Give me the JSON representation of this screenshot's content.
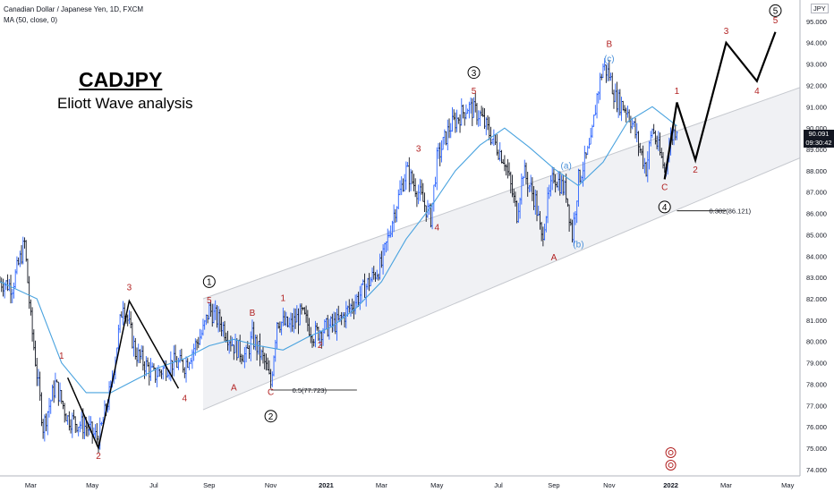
{
  "header": {
    "symbol_line": "Canadian Dollar / Japanese Yen, 1D, FXCM",
    "indicator_line": "MA (50, close, 0)",
    "currency": "JPY"
  },
  "chart_title": "CADJPY",
  "chart_subtitle": "Eliott Wave analysis",
  "price_badge": {
    "price": "90.091",
    "countdown": "09:30:42"
  },
  "colors": {
    "up_bar": "#2962ff",
    "bar": "#131722",
    "ma": "#4aa3df",
    "wave_red": "#b22222",
    "wave_blue": "#4a90d9",
    "channel_fill": "#f0f1f4",
    "channel_line": "#c5c8ce",
    "projection": "#000000"
  },
  "chart_data": {
    "type": "ohlc",
    "x_labels": [
      "Mar",
      "May",
      "Jul",
      "Sep",
      "Nov",
      "2021",
      "Mar",
      "May",
      "Jul",
      "Sep",
      "Nov",
      "2022",
      "Mar",
      "May"
    ],
    "y_ticks": [
      "95.000",
      "94.000",
      "93.000",
      "92.000",
      "91.000",
      "90.000",
      "89.000",
      "88.000",
      "87.000",
      "86.000",
      "85.000",
      "84.000",
      "83.000",
      "82.000",
      "81.000",
      "80.000",
      "79.000",
      "78.000",
      "77.000",
      "76.000",
      "75.000",
      "74.000"
    ],
    "ylim": [
      73.7,
      96.0
    ],
    "xlim": [
      0,
      130
    ],
    "x_tick_positions": [
      5,
      15,
      25,
      34,
      44,
      53,
      62,
      71,
      81,
      90,
      99,
      109,
      118,
      128
    ],
    "price_path": [
      [
        0,
        82.8
      ],
      [
        2,
        82.6
      ],
      [
        4,
        84.6
      ],
      [
        5,
        81.0
      ],
      [
        7,
        76.0
      ],
      [
        9,
        78.0
      ],
      [
        11,
        76.4
      ],
      [
        14,
        76.0
      ],
      [
        16,
        75.4
      ],
      [
        18,
        77.8
      ],
      [
        20,
        81.9
      ],
      [
        22,
        79.5
      ],
      [
        25,
        78.4
      ],
      [
        28,
        79.0
      ],
      [
        30,
        78.9
      ],
      [
        33,
        80.5
      ],
      [
        34,
        81.5
      ],
      [
        36,
        80.8
      ],
      [
        38,
        79.8
      ],
      [
        40,
        79.3
      ],
      [
        41,
        80.2
      ],
      [
        43,
        79.0
      ],
      [
        44,
        78.0
      ],
      [
        45,
        81.0
      ],
      [
        47,
        80.7
      ],
      [
        49,
        81.3
      ],
      [
        51,
        80.3
      ],
      [
        52,
        80.5
      ],
      [
        55,
        80.9
      ],
      [
        58,
        82.0
      ],
      [
        62,
        83.6
      ],
      [
        64,
        86.0
      ],
      [
        66,
        88.0
      ],
      [
        68,
        87.0
      ],
      [
        70,
        85.8
      ],
      [
        71,
        88.5
      ],
      [
        73,
        90.0
      ],
      [
        76,
        91.0
      ],
      [
        78,
        90.6
      ],
      [
        80,
        89.5
      ],
      [
        82,
        88.5
      ],
      [
        84,
        86.0
      ],
      [
        85,
        88.0
      ],
      [
        87,
        86.6
      ],
      [
        88,
        84.8
      ],
      [
        89,
        86.5
      ],
      [
        90,
        87.8
      ],
      [
        92,
        87.0
      ],
      [
        93,
        85.0
      ],
      [
        94,
        87.6
      ],
      [
        96,
        89.2
      ],
      [
        97,
        91.5
      ],
      [
        98,
        92.9
      ],
      [
        99,
        92.5
      ],
      [
        100,
        91.4
      ],
      [
        102,
        90.8
      ],
      [
        103,
        90.0
      ],
      [
        104,
        89.0
      ],
      [
        105,
        88.1
      ],
      [
        106,
        90.0
      ],
      [
        107,
        89.0
      ],
      [
        108,
        88.1
      ],
      [
        109,
        89.5
      ],
      [
        110,
        90.1
      ]
    ],
    "ma_path": [
      [
        0,
        82.8
      ],
      [
        6,
        82.0
      ],
      [
        10,
        79.0
      ],
      [
        14,
        77.6
      ],
      [
        18,
        77.6
      ],
      [
        22,
        78.2
      ],
      [
        26,
        78.8
      ],
      [
        30,
        79.2
      ],
      [
        34,
        79.8
      ],
      [
        38,
        80.1
      ],
      [
        42,
        79.8
      ],
      [
        46,
        79.6
      ],
      [
        50,
        80.2
      ],
      [
        54,
        80.7
      ],
      [
        58,
        81.6
      ],
      [
        62,
        82.8
      ],
      [
        66,
        84.8
      ],
      [
        70,
        86.3
      ],
      [
        74,
        88.0
      ],
      [
        78,
        89.2
      ],
      [
        82,
        90.0
      ],
      [
        86,
        89.1
      ],
      [
        90,
        88.1
      ],
      [
        94,
        87.3
      ],
      [
        98,
        88.4
      ],
      [
        102,
        90.3
      ],
      [
        106,
        91.0
      ],
      [
        110,
        90.1
      ]
    ],
    "channel": {
      "upper": [
        [
          33,
          82.0
        ],
        [
          130,
          91.9
        ]
      ],
      "lower": [
        [
          33,
          76.8
        ],
        [
          130,
          88.6
        ]
      ]
    },
    "wave_lines": [
      [
        [
          11,
          78.3
        ],
        [
          16,
          75.0
        ],
        [
          21,
          81.9
        ],
        [
          29,
          77.8
        ]
      ]
    ],
    "projection": [
      [
        108,
        87.6
      ],
      [
        110,
        91.2
      ],
      [
        113,
        88.5
      ],
      [
        118,
        94.0
      ],
      [
        123,
        92.2
      ],
      [
        126,
        94.5
      ]
    ],
    "fib_levels": [
      {
        "label": "0.5(77.723)",
        "x0": 44,
        "x1": 58,
        "y": 77.723
      },
      {
        "label": "0.382(86.121)",
        "x0": 110,
        "x1": 118,
        "y": 86.121
      }
    ],
    "wave_labels": [
      {
        "text": "1",
        "x": 10,
        "y": 79.2,
        "style": "red"
      },
      {
        "text": "2",
        "x": 16,
        "y": 74.5,
        "style": "red"
      },
      {
        "text": "3",
        "x": 21,
        "y": 82.4,
        "style": "red"
      },
      {
        "text": "4",
        "x": 30,
        "y": 77.2,
        "style": "red"
      },
      {
        "text": "1",
        "x": 34,
        "y": 82.8,
        "style": "circle"
      },
      {
        "text": "5",
        "x": 34,
        "y": 81.8,
        "style": "red"
      },
      {
        "text": "A",
        "x": 38,
        "y": 77.7,
        "style": "red"
      },
      {
        "text": "B",
        "x": 41,
        "y": 81.2,
        "style": "red"
      },
      {
        "text": "C",
        "x": 44,
        "y": 77.5,
        "style": "red"
      },
      {
        "text": "2",
        "x": 44,
        "y": 76.5,
        "style": "circle"
      },
      {
        "text": "1",
        "x": 46,
        "y": 81.9,
        "style": "red"
      },
      {
        "text": "2",
        "x": 52,
        "y": 79.7,
        "style": "red"
      },
      {
        "text": "3",
        "x": 68,
        "y": 88.9,
        "style": "red"
      },
      {
        "text": "4",
        "x": 71,
        "y": 85.2,
        "style": "red"
      },
      {
        "text": "3",
        "x": 77,
        "y": 92.6,
        "style": "circle"
      },
      {
        "text": "5",
        "x": 77,
        "y": 91.6,
        "style": "red"
      },
      {
        "text": "A",
        "x": 90,
        "y": 83.8,
        "style": "red"
      },
      {
        "text": "(a)",
        "x": 92,
        "y": 88.1,
        "style": "blue"
      },
      {
        "text": "(b)",
        "x": 94,
        "y": 84.4,
        "style": "blue"
      },
      {
        "text": "B",
        "x": 99,
        "y": 93.8,
        "style": "red"
      },
      {
        "text": "(c)",
        "x": 99,
        "y": 93.1,
        "style": "blue"
      },
      {
        "text": "1",
        "x": 110,
        "y": 91.6,
        "style": "red"
      },
      {
        "text": "C",
        "x": 108,
        "y": 87.1,
        "style": "red"
      },
      {
        "text": "4",
        "x": 108,
        "y": 86.3,
        "style": "circle"
      },
      {
        "text": "2",
        "x": 113,
        "y": 87.9,
        "style": "red"
      },
      {
        "text": "3",
        "x": 118,
        "y": 94.4,
        "style": "red"
      },
      {
        "text": "4",
        "x": 123,
        "y": 91.6,
        "style": "red"
      },
      {
        "text": "5",
        "x": 126,
        "y": 95.5,
        "style": "circle"
      },
      {
        "text": "5",
        "x": 126,
        "y": 94.9,
        "style": "red"
      }
    ]
  }
}
